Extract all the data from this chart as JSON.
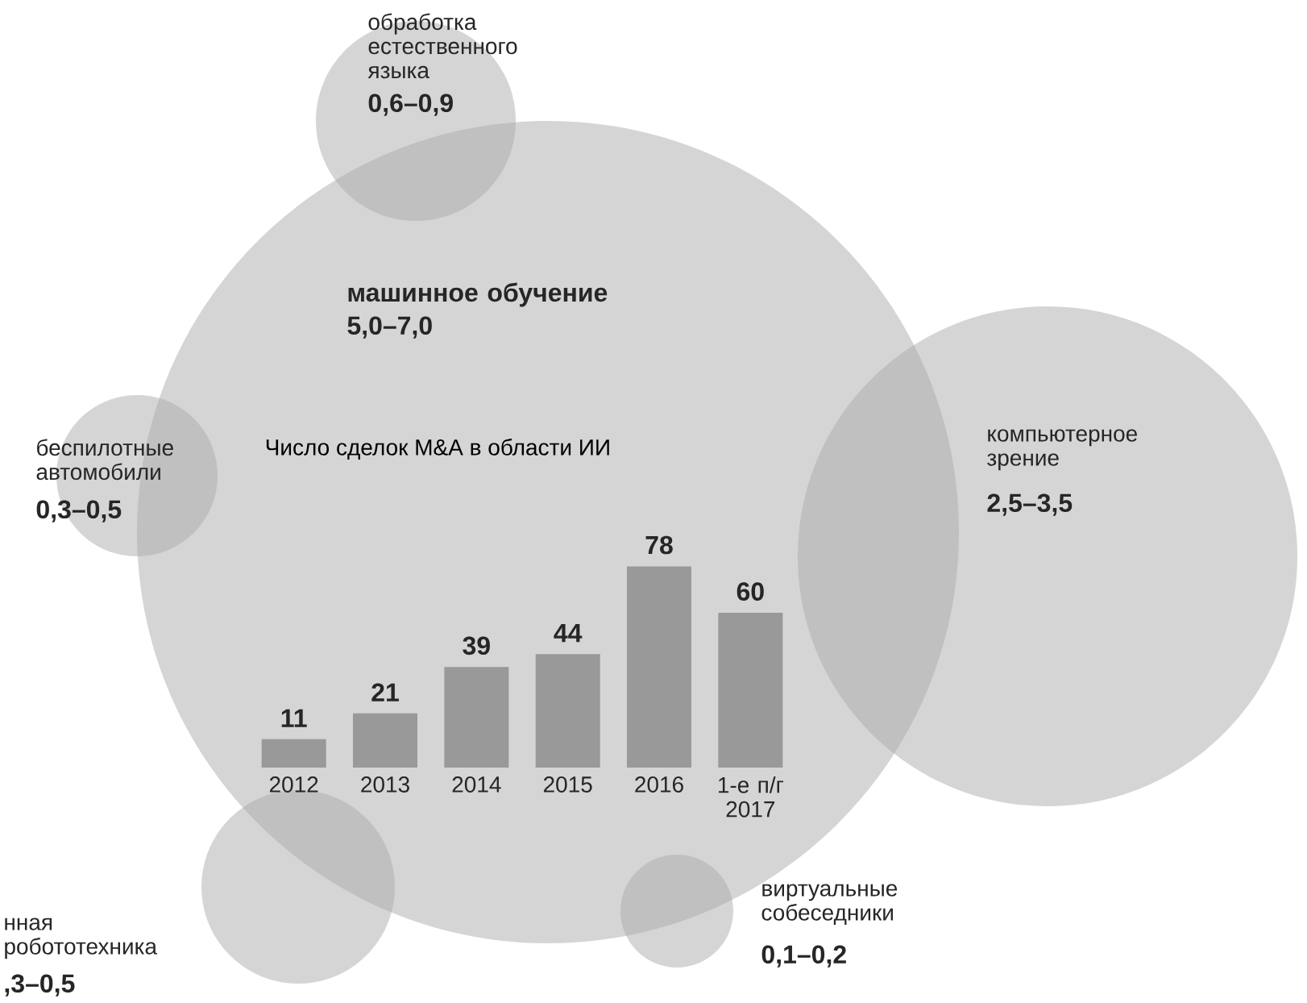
{
  "chart_data": [
    {
      "type": "other",
      "annotations": [
        "обработка естественного языка",
        "0,6–0,9",
        "машинное обучение",
        "5,0–7,0",
        "беспилотные автомобили",
        "0,3–0,5",
        "компьютерное зрение",
        "2,5–3,5",
        "нная робототехника",
        ",3–0,5",
        "виртуальные собеседники",
        "0,1–0,2"
      ]
    },
    {
      "type": "bar",
      "title": "Число сделок M&A в области ИИ",
      "categories": [
        "2012",
        "2013",
        "2014",
        "2015",
        "2016",
        "1-е п/г 2017"
      ],
      "values": [
        11,
        21,
        39,
        44,
        78,
        60
      ],
      "color": "#999999",
      "data_labels": true
    }
  ]
}
